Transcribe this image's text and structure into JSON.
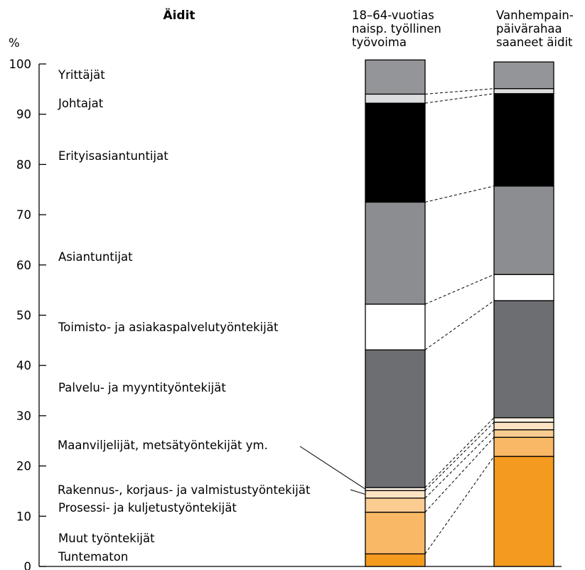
{
  "chart_data": {
    "type": "bar",
    "stacked": true,
    "title": "Äidit",
    "ylabel": "%",
    "ylim": [
      0,
      100
    ],
    "yticks": [
      "0",
      "10",
      "20",
      "30",
      "40",
      "50",
      "60",
      "70",
      "80",
      "90",
      "100"
    ],
    "series_columns": [
      "18–64-vuotias naisp. työllinen työvoima",
      "Vanhempain-päivärahaa saaneet äidit"
    ],
    "column_header_lines": [
      [
        "18–64-vuotias",
        "naisp. työllinen",
        "työvoima"
      ],
      [
        "Vanhempain-",
        "päivärahaa",
        "saaneet äidit"
      ]
    ],
    "segments": [
      {
        "name": "Tuntematon",
        "color": "#f39a1f",
        "values": [
          2.5,
          21.9
        ]
      },
      {
        "name": "Muut työntekijät",
        "color": "#f8b866",
        "values": [
          8.3,
          3.8
        ]
      },
      {
        "name": "Prosessi- ja kuljetustyöntekijät",
        "color": "#fbcc92",
        "values": [
          2.8,
          1.5
        ]
      },
      {
        "name": "Rakennus-, korjaus- ja valmistustyöntekijät",
        "color": "#fde3c4",
        "values": [
          1.5,
          1.5
        ]
      },
      {
        "name": "Maanviljelijät, metsätyöntekijät ym.",
        "color": "#fff3e4",
        "values": [
          0.6,
          0.9
        ]
      },
      {
        "name": "Palvelu- ja myyntityöntekijät",
        "color": "#6d6e71",
        "values": [
          27.4,
          23.3
        ]
      },
      {
        "name": "Toimisto- ja asiakaspalvelutyöntekijät",
        "color": "#ffffff",
        "values": [
          9.1,
          5.2
        ]
      },
      {
        "name": "Asiantuntijat",
        "color": "#8c8d90",
        "values": [
          20.3,
          17.6
        ]
      },
      {
        "name": "Erityisasiantuntijat",
        "color": "#000000",
        "values": [
          19.7,
          18.4
        ]
      },
      {
        "name": "Johtajat",
        "color": "#dcdddf",
        "values": [
          1.8,
          1.0
        ]
      },
      {
        "name": "Yrittäjät",
        "color": "#939598",
        "values": [
          6.8,
          5.3
        ]
      }
    ]
  }
}
